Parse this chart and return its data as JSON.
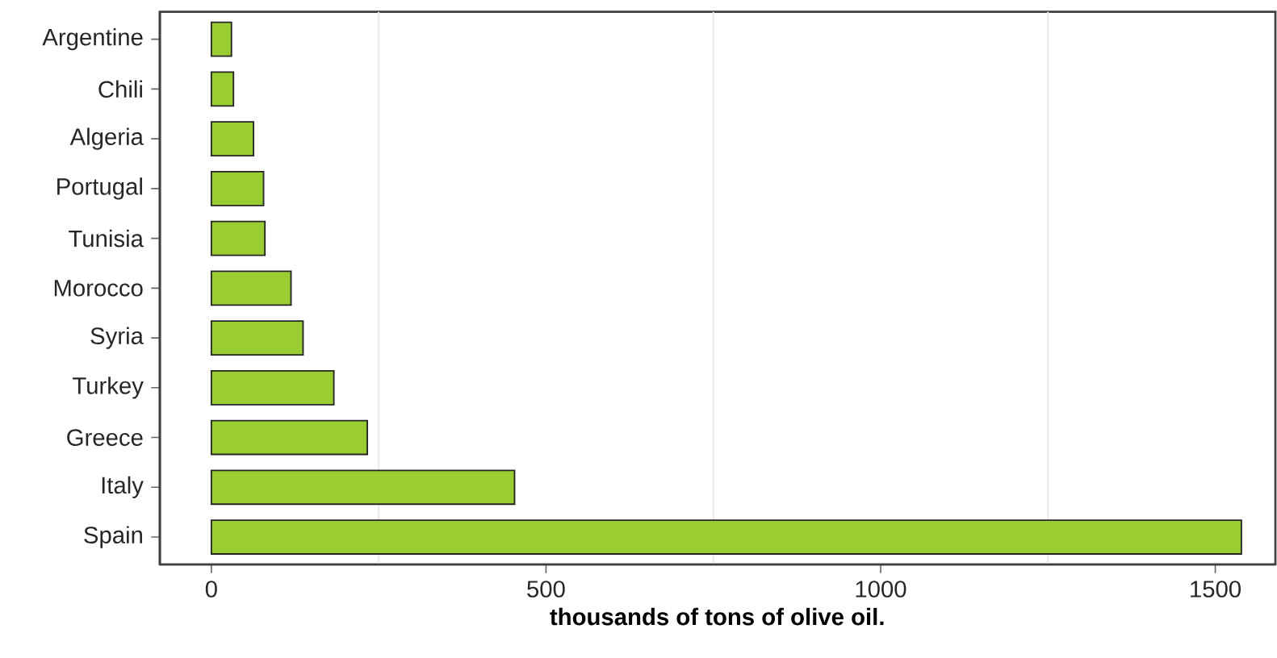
{
  "chart_data": {
    "type": "bar",
    "orientation": "horizontal",
    "xlabel": "thousands of tons of olive oil.",
    "categories": [
      "Argentine",
      "Chili",
      "Algeria",
      "Portugal",
      "Tunisia",
      "Morocco",
      "Syria",
      "Turkey",
      "Greece",
      "Italy",
      "Spain"
    ],
    "values": [
      30,
      33,
      63,
      78,
      80,
      119,
      137,
      183,
      233,
      453,
      1539
    ],
    "color": "#9acd32",
    "xlim": [
      -77,
      1589
    ],
    "xticks": [
      0,
      500,
      1000,
      1500
    ],
    "grid": "x"
  }
}
